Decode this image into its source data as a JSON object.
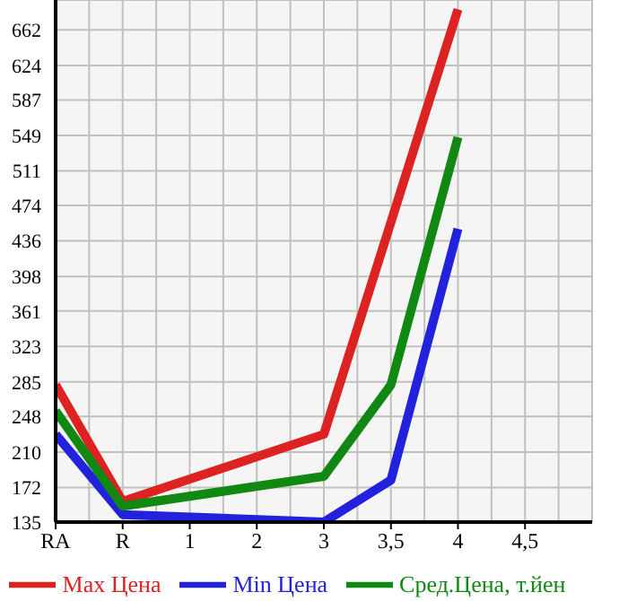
{
  "chart_data": {
    "type": "line",
    "categories": [
      "RA",
      "R",
      "1",
      "2",
      "3",
      "3,5",
      "4",
      "4,5"
    ],
    "series": [
      {
        "name": "Max Цена",
        "color": "#dd2222",
        "values": [
          282,
          157,
          null,
          null,
          229,
          456,
          684,
          null
        ]
      },
      {
        "name": "Min Цена",
        "color": "#2222dd",
        "values": [
          229,
          143,
          null,
          null,
          135,
          180,
          449,
          null
        ]
      },
      {
        "name": "Сред.Цена, т.йен",
        "color": "#118811",
        "values": [
          254,
          152,
          null,
          null,
          184,
          282,
          547,
          null
        ]
      }
    ],
    "ylim": [
      135,
      694
    ],
    "yticks": [
      135,
      172,
      210,
      248,
      285,
      323,
      361,
      398,
      436,
      474,
      511,
      549,
      587,
      624,
      662
    ],
    "grid": true,
    "legend": "bottom",
    "marker": "none",
    "line_style": "solid"
  }
}
